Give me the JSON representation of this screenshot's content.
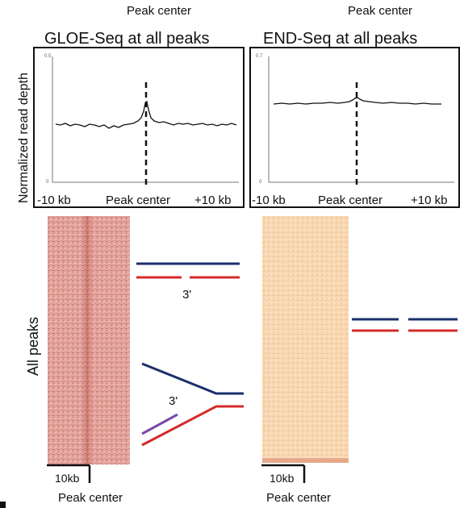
{
  "top_labels": {
    "left": "Peak center",
    "right": "Peak center"
  },
  "profiles": {
    "y_axis_label": "Normalized read depth",
    "left": {
      "title": "GLOE-Seq at all peaks",
      "y_top_tick": "0.5",
      "y_bottom_tick": "0",
      "x_ticks": [
        "-10 kb",
        "Peak center",
        "+10 kb"
      ]
    },
    "right": {
      "title": "END-Seq at all peaks",
      "y_top_tick": "0.7",
      "y_bottom_tick": "0",
      "x_ticks": [
        "-10 kb",
        "Peak center",
        "+10 kb"
      ]
    }
  },
  "heatmaps": {
    "row_label": "All peaks",
    "left": {
      "scale_label": "10kb",
      "bottom_label": "Peak center",
      "color": "#d9958c"
    },
    "right": {
      "scale_label": "10kb",
      "bottom_label": "Peak center",
      "color": "#f6d3aa"
    }
  },
  "schematic": {
    "strand_colors": {
      "top": "#1b2f6b",
      "bottom": "#d42b2b",
      "primer": "#7b4aa6"
    },
    "nick_label": "3'",
    "flap_label": "3'"
  }
}
